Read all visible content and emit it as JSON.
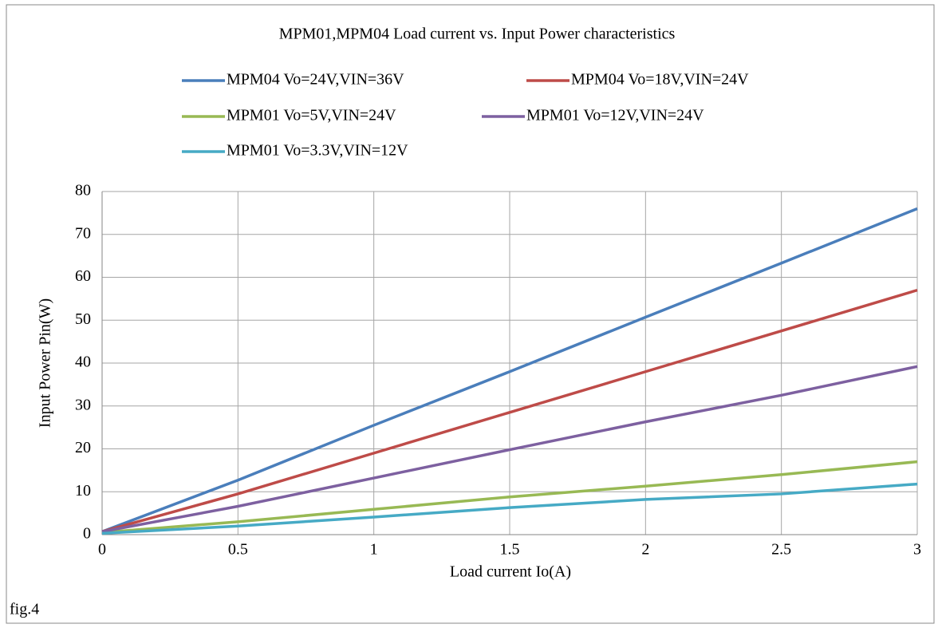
{
  "chart_data": {
    "type": "line",
    "title": "MPM01,MPM04 Load current vs. Input Power characteristics",
    "x_label": "Load current Io(A)",
    "y_label": "Input Power Pin(W)",
    "caption": "fig.4",
    "x": [
      0,
      0.5,
      1,
      1.5,
      2,
      2.5,
      3
    ],
    "series": [
      {
        "name": "MPM04 Vo=24V,VIN=36V",
        "color": "#4a7ebb",
        "values": [
          0.7,
          12.7,
          25.5,
          38,
          50.7,
          63.3,
          76
        ]
      },
      {
        "name": "MPM04 Vo=18V,VIN=24V",
        "color": "#be4b48",
        "values": [
          0.7,
          9.5,
          19,
          28.5,
          38,
          47.5,
          57
        ]
      },
      {
        "name": "MPM01 Vo=5V,VIN=24V",
        "color": "#98b954",
        "values": [
          0.5,
          3,
          5.9,
          8.8,
          11.3,
          14,
          17
        ]
      },
      {
        "name": "MPM01 Vo=12V,VIN=24V",
        "color": "#7d60a0",
        "values": [
          0.7,
          6.6,
          13.2,
          19.8,
          26.3,
          32.5,
          39.2
        ]
      },
      {
        "name": "MPM01 Vo=3.3V,VIN=12V",
        "color": "#46aac5",
        "values": [
          0.3,
          2,
          4.1,
          6.3,
          8.2,
          9.5,
          11.8
        ]
      }
    ],
    "xlim": [
      0,
      3
    ],
    "xticks": [
      0,
      0.5,
      1,
      1.5,
      2,
      2.5,
      3
    ],
    "ylim": [
      0,
      80
    ],
    "yticks": [
      0,
      10,
      20,
      30,
      40,
      50,
      60,
      70,
      80
    ],
    "grid": true,
    "legend": "top"
  }
}
